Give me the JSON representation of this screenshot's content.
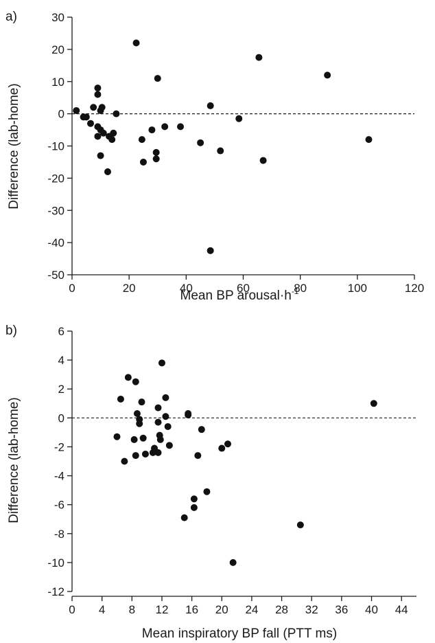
{
  "chart_data": [
    {
      "type": "scatter",
      "panel_label": "a)",
      "xlabel": "Mean BP arousal·h",
      "xlabel_superscript": "-1",
      "ylabel": "Difference (lab-home)",
      "xlim": [
        0,
        120
      ],
      "ylim": [
        -50,
        30
      ],
      "xticks": [
        "0",
        "20",
        "40",
        "60",
        "80",
        "100",
        "120"
      ],
      "yticks": [
        "30",
        "20",
        "10",
        "0",
        "-10",
        "-20",
        "-30",
        "-40",
        "-50"
      ],
      "reference_line_y": 0,
      "points": [
        [
          1.5,
          1
        ],
        [
          4,
          -1
        ],
        [
          5,
          -1
        ],
        [
          6.5,
          -3
        ],
        [
          7.5,
          2
        ],
        [
          9,
          8
        ],
        [
          9,
          6
        ],
        [
          9,
          -4
        ],
        [
          9,
          -7
        ],
        [
          10,
          1
        ],
        [
          10,
          -5
        ],
        [
          10,
          -13
        ],
        [
          10.5,
          2
        ],
        [
          11,
          -6
        ],
        [
          12.5,
          -18
        ],
        [
          13,
          -7
        ],
        [
          14,
          -8
        ],
        [
          14.5,
          -6
        ],
        [
          15.5,
          0
        ],
        [
          22.5,
          22
        ],
        [
          24.5,
          -8
        ],
        [
          25,
          -15
        ],
        [
          28,
          -5
        ],
        [
          29.5,
          -12
        ],
        [
          29.5,
          -14
        ],
        [
          30,
          11
        ],
        [
          32.5,
          -4
        ],
        [
          38,
          -4
        ],
        [
          45,
          -9
        ],
        [
          48.5,
          -42.5
        ],
        [
          48.5,
          2.5
        ],
        [
          52,
          -11.5
        ],
        [
          58.5,
          -1.5
        ],
        [
          65.5,
          17.5
        ],
        [
          67,
          -14.5
        ],
        [
          89.5,
          12
        ],
        [
          104,
          -8
        ]
      ]
    },
    {
      "type": "scatter",
      "panel_label": "b)",
      "xlabel": "Mean inspiratory BP fall (PTT ms)",
      "ylabel": "Difference (lab-home)",
      "xlim": [
        0,
        46
      ],
      "ylim": [
        -12,
        6
      ],
      "xticks": [
        "0",
        "4",
        "8",
        "12",
        "16",
        "20",
        "24",
        "28",
        "32",
        "36",
        "40",
        "44"
      ],
      "yticks": [
        "6",
        "4",
        "2",
        "0",
        "-2",
        "-4",
        "-6",
        "-8",
        "-10",
        "-12"
      ],
      "reference_line_y": 0,
      "points": [
        [
          6,
          -1.3
        ],
        [
          6.5,
          1.3
        ],
        [
          7,
          -3
        ],
        [
          7.5,
          2.8
        ],
        [
          8.3,
          -1.5
        ],
        [
          8.5,
          2.5
        ],
        [
          8.5,
          -2.6
        ],
        [
          8.7,
          0.3
        ],
        [
          9,
          -0.1
        ],
        [
          9,
          -0.4
        ],
        [
          9.3,
          1.1
        ],
        [
          9.5,
          -1.4
        ],
        [
          9.8,
          -2.5
        ],
        [
          10.8,
          -2.4
        ],
        [
          11,
          -2.1
        ],
        [
          11.5,
          0.7
        ],
        [
          11.5,
          -0.3
        ],
        [
          11.5,
          -2.4
        ],
        [
          11.7,
          -1.2
        ],
        [
          11.8,
          -1.5
        ],
        [
          12,
          3.8
        ],
        [
          12.5,
          0.1
        ],
        [
          12.5,
          1.4
        ],
        [
          12.8,
          -0.6
        ],
        [
          13,
          -1.9
        ],
        [
          15,
          -6.9
        ],
        [
          15.5,
          0.2
        ],
        [
          15.5,
          0.3
        ],
        [
          16.3,
          -5.6
        ],
        [
          16.3,
          -6.2
        ],
        [
          16.8,
          -2.6
        ],
        [
          17.3,
          -0.8
        ],
        [
          18,
          -5.1
        ],
        [
          20,
          -2.1
        ],
        [
          20.8,
          -1.8
        ],
        [
          21.5,
          -10
        ],
        [
          30.5,
          -7.4
        ],
        [
          40.3,
          1
        ]
      ]
    }
  ]
}
